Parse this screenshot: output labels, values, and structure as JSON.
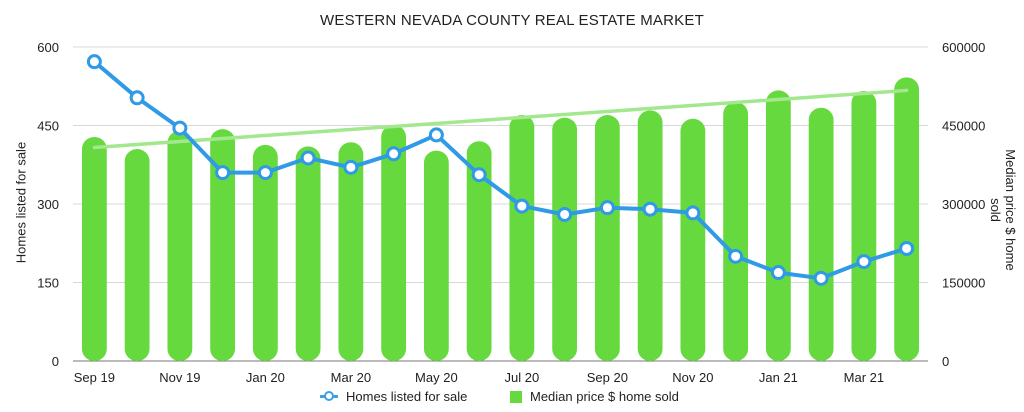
{
  "chart_data": {
    "type": "bar",
    "title": "WESTERN NEVADA COUNTY REAL ESTATE MARKET",
    "ylabel_left": "Homes listed for sale",
    "ylabel_right": "Median price $ home sold",
    "left_ticks": [
      "0",
      "150",
      "300",
      "450",
      "600"
    ],
    "right_ticks": [
      "0",
      "150000",
      "300000",
      "450000",
      "600000"
    ],
    "ylim_left": [
      0,
      600
    ],
    "ylim_right": [
      0,
      600000
    ],
    "x_tick_labels": [
      "Sep 19",
      "Nov 19",
      "Jan 20",
      "Mar 20",
      "May 20",
      "Jul 20",
      "Sep 20",
      "Nov 20",
      "Jan 21",
      "Mar 21"
    ],
    "categories": [
      "Sep 19",
      "Oct 19",
      "Nov 19",
      "Dec 19",
      "Jan 20",
      "Feb 20",
      "Mar 20",
      "Apr 20",
      "May 20",
      "Jun 20",
      "Jul 20",
      "Aug 20",
      "Sep 20",
      "Oct 20",
      "Nov 20",
      "Dec 20",
      "Jan 21",
      "Feb 21",
      "Mar 21",
      "Apr 21"
    ],
    "series": [
      {
        "name": "Median price $ home sold",
        "type": "bar",
        "axis": "right",
        "color": "#66d93f",
        "values": [
          428000,
          405000,
          440000,
          443000,
          413000,
          410000,
          418000,
          451000,
          402000,
          420000,
          470000,
          465000,
          470000,
          479000,
          463000,
          495000,
          517000,
          484000,
          516000,
          542000
        ]
      },
      {
        "name": "Homes listed for sale",
        "type": "line",
        "axis": "left",
        "color": "#2f9ae6",
        "values": [
          572,
          503,
          445,
          360,
          360,
          388,
          370,
          396,
          432,
          356,
          296,
          280,
          293,
          290,
          283,
          200,
          169,
          158,
          190,
          215
        ]
      }
    ],
    "trendline": {
      "series": "Median price $ home sold",
      "color": "#a3e88e",
      "start": 408000,
      "end": 517000
    },
    "grid": true,
    "legend_position": "bottom"
  }
}
